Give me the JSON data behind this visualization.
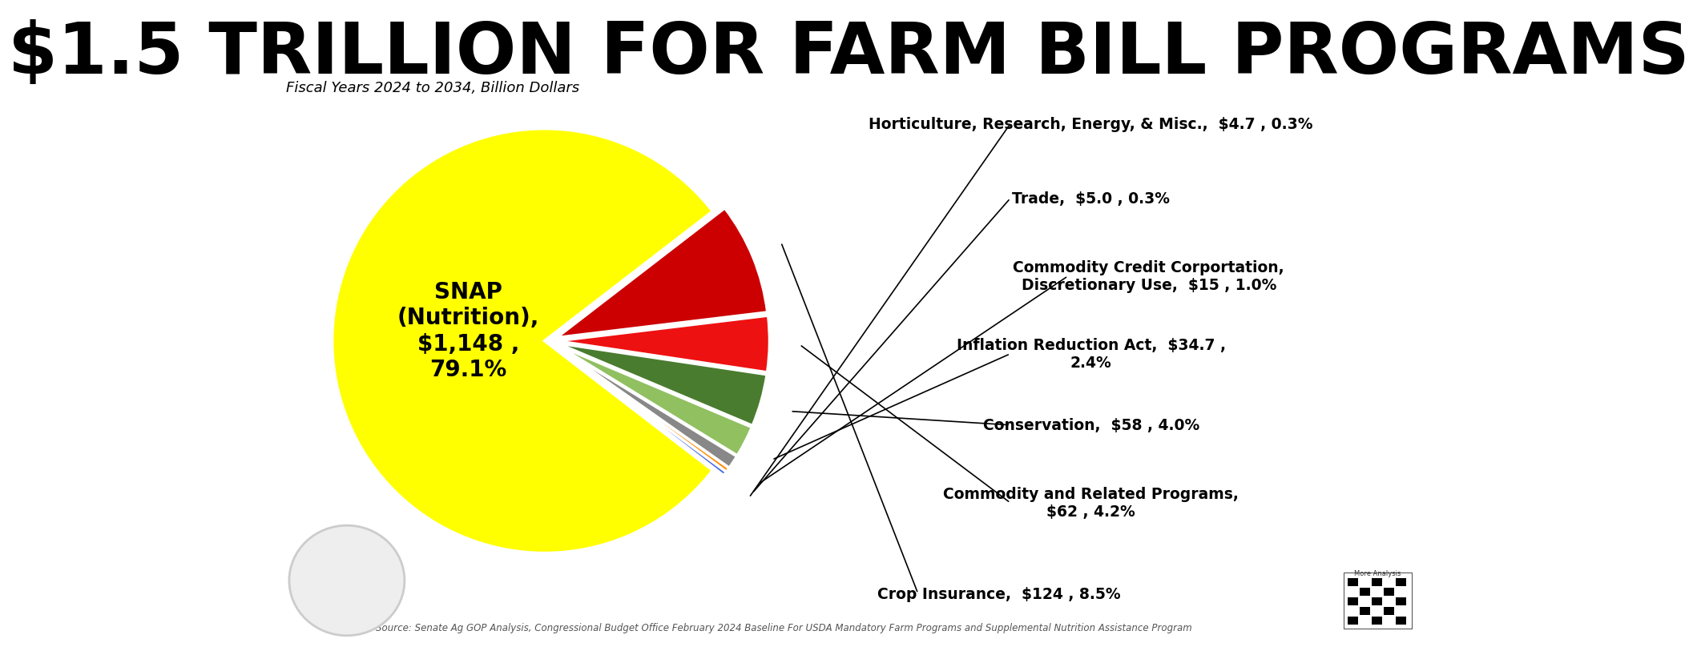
{
  "title": "$1.5 TRILLION FOR FARM BILL PROGRAMS",
  "subtitle": "Fiscal Years 2024 to 2034, Billion Dollars",
  "source": "Source: Senate Ag GOP Analysis, Congressional Budget Office February 2024 Baseline For USDA Mandatory Farm Programs and Supplemental Nutrition Assistance Program",
  "slices": [
    {
      "label": "SNAP\n(Nutrition),\n$1,148 ,\n79.1%",
      "value": 1148,
      "pct": 79.1,
      "color": "#FFFF00"
    },
    {
      "label": "Crop Insurance,  $124 , 8.5%",
      "value": 124,
      "pct": 8.5,
      "color": "#CC0000"
    },
    {
      "label": "Commodity and Related Programs,\n$62 , 4.2%",
      "value": 62,
      "pct": 4.2,
      "color": "#EE1111"
    },
    {
      "label": "Conservation,  $58 , 4.0%",
      "value": 58,
      "pct": 4.0,
      "color": "#4A7C2F"
    },
    {
      "label": "Inflation Reduction Act,  $34.7 ,\n2.4%",
      "value": 34.7,
      "pct": 2.4,
      "color": "#90C060"
    },
    {
      "label": "Commodity Credit Corportation,\nDiscretionary Use,  $15 , 1.0%",
      "value": 15,
      "pct": 1.0,
      "color": "#888888"
    },
    {
      "label": "Trade,  $5.0 , 0.3%",
      "value": 5.0,
      "pct": 0.3,
      "color": "#FF8C00"
    },
    {
      "label": "Horticulture, Research, Energy, & Misc.,  $4.7 , 0.3%",
      "value": 4.7,
      "pct": 0.3,
      "color": "#4169E1"
    }
  ],
  "background_color": "#FFFFFF",
  "snap_label": "SNAP\n(Nutrition),\n$1,148 ,\n79.1%",
  "label_texts_right": [
    "Crop Insurance,  $124 , 8.5%",
    "Commodity and Related Programs,\n$62 , 4.2%",
    "Conservation,  $58 , 4.0%",
    "Inflation Reduction Act,  $34.7 ,\n2.4%",
    "Commodity Credit Corportation,\nDiscretionary Use,  $15 , 1.0%",
    "Trade,  $5.0 , 0.3%",
    "Horticulture, Research, Energy, & Misc.,  $4.7 , 0.3%"
  ]
}
